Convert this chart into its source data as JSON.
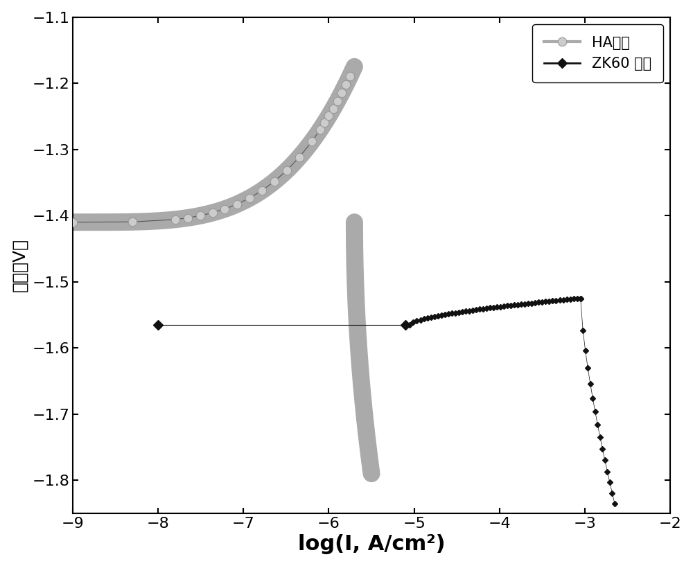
{
  "xlabel": "log(I, A/cm²)",
  "ylabel": "电位（V）",
  "xlim": [
    -9,
    -2
  ],
  "ylim": [
    -1.85,
    -1.1
  ],
  "xticks": [
    -9,
    -8,
    -7,
    -6,
    -5,
    -4,
    -3,
    -2
  ],
  "yticks": [
    -1.8,
    -1.7,
    -1.6,
    -1.5,
    -1.4,
    -1.3,
    -1.2,
    -1.1
  ],
  "legend_ha": "HA涂层",
  "legend_zk": "ZK60 基体",
  "ha_color": "#aaaaaa",
  "zk_color": "#111111",
  "background_color": "#ffffff",
  "xlabel_fontsize": 22,
  "ylabel_fontsize": 18,
  "tick_fontsize": 16,
  "legend_fontsize": 15,
  "ha_linewidth": 18,
  "zk_linewidth": 2.5,
  "ha_ecorr": -5.7,
  "ha_vcorr": -1.41,
  "ha_cat_xstart": -9.0,
  "ha_cat_vstart": -1.415,
  "ha_anod_xend": -5.5,
  "ha_anod_vend": -1.79,
  "ha_cat_vtop": -1.175,
  "ha_cat_xtop": -5.55,
  "zk_ecorr": -5.05,
  "zk_vcorr": -1.565,
  "zk_cat_xstart": -8.0,
  "zk_anod_vtop": -1.525,
  "zk_anod_xbreak": -3.05,
  "zk_anod_xend": -2.65,
  "zk_anod_vend": -1.835
}
